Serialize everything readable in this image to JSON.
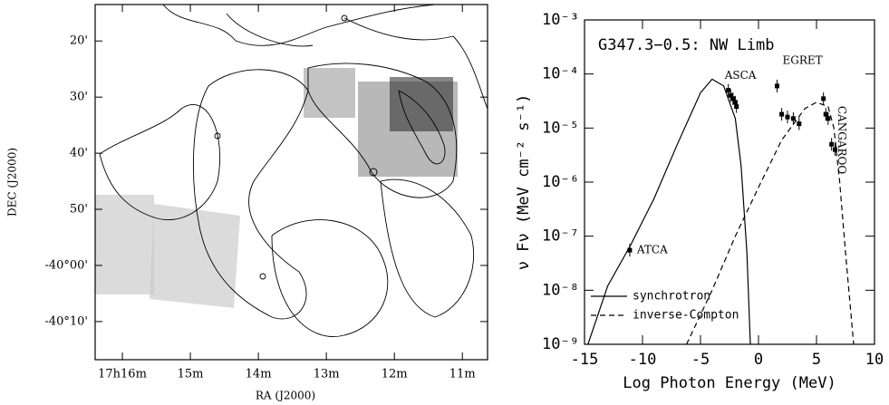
{
  "chart_data": [
    {
      "type": "map",
      "x_label": "RA (J2000)",
      "y_label": "DEC (J2000)",
      "xlim": [
        16.4,
        10.63
      ],
      "ylim": [
        -40.28,
        -39.225
      ],
      "xticks": [
        {
          "value": 16,
          "label": "17h16m"
        },
        {
          "value": 15,
          "label": "15m"
        },
        {
          "value": 14,
          "label": "14m"
        },
        {
          "value": 13,
          "label": "13m"
        },
        {
          "value": 12,
          "label": "12m"
        },
        {
          "value": 11,
          "label": "11m"
        }
      ],
      "yticks": [
        {
          "value": -39.3333,
          "label": "20'"
        },
        {
          "value": -39.5,
          "label": "30'"
        },
        {
          "value": -39.6667,
          "label": "40'"
        },
        {
          "value": -39.8333,
          "label": "50'"
        },
        {
          "value": -40,
          "label": "-40°00'"
        },
        {
          "value": -40.1667,
          "label": "-40°10'"
        }
      ]
    },
    {
      "type": "line",
      "title": "G347.3−0.5: NW Limb",
      "x_label": "Log Photon Energy (MeV)",
      "y_label": "ν Fν (MeV cm⁻² s⁻¹)",
      "xlim": [
        -15,
        10
      ],
      "ylim": [
        1e-09,
        0.001
      ],
      "ylog": true,
      "xticks": [
        -15,
        -10,
        -5,
        0,
        5,
        10
      ],
      "yticks": [
        {
          "value": 1e-09,
          "label": "10⁻⁹"
        },
        {
          "value": 1e-08,
          "label": "10⁻⁸"
        },
        {
          "value": 1e-07,
          "label": "10⁻⁷"
        },
        {
          "value": 1e-06,
          "label": "10⁻⁶"
        },
        {
          "value": 1e-05,
          "label": "10⁻⁵"
        },
        {
          "value": 0.0001,
          "label": "10⁻⁴"
        },
        {
          "value": 0.001,
          "label": "10⁻³"
        }
      ],
      "series": [
        {
          "name": "synchrotron",
          "style": "solid",
          "color": "#000000",
          "x": [
            -14.7,
            -13,
            -11,
            -9,
            -7,
            -5,
            -4,
            -3,
            -2,
            -1.5,
            -1,
            -0.7
          ],
          "values": [
            1e-09,
            1.2e-08,
            7e-08,
            5e-07,
            5e-06,
            4.5e-05,
            8e-05,
            6e-05,
            1.5e-05,
            2e-06,
            5e-08,
            1e-09
          ]
        },
        {
          "name": "inverse-Compton",
          "style": "dashed",
          "color": "#000000",
          "x": [
            -6.2,
            -4,
            -2,
            0,
            2,
            4,
            5,
            6,
            6.5,
            7,
            7.5,
            8.2
          ],
          "values": [
            1e-09,
            1e-08,
            1e-07,
            8e-07,
            6e-06,
            2.3e-05,
            3e-05,
            2.5e-05,
            1e-05,
            1e-06,
            5e-08,
            1e-09
          ]
        },
        {
          "name": "ATCA",
          "style": "points",
          "color": "#000000",
          "x": [
            -11.1
          ],
          "values": [
            5.5e-08
          ]
        },
        {
          "name": "ASCA",
          "style": "points",
          "color": "#000000",
          "x": [
            -2.6,
            -2.4,
            -2.2,
            -2.0,
            -1.9
          ],
          "values": [
            5e-05,
            4e-05,
            3.5e-05,
            3e-05,
            2.5e-05
          ]
        },
        {
          "name": "EGRET",
          "style": "points",
          "color": "#000000",
          "x": [
            1.6,
            2.0,
            2.5,
            3.0,
            3.5
          ],
          "values": [
            6e-05,
            1.8e-05,
            1.6e-05,
            1.5e-05,
            1.2e-05
          ]
        },
        {
          "name": "CANGAROO",
          "style": "points",
          "color": "#000000",
          "x": [
            5.6,
            5.8,
            6.0,
            6.3,
            6.6
          ],
          "values": [
            3.5e-05,
            1.8e-05,
            1.5e-05,
            5e-06,
            4e-06
          ]
        }
      ]
    }
  ]
}
